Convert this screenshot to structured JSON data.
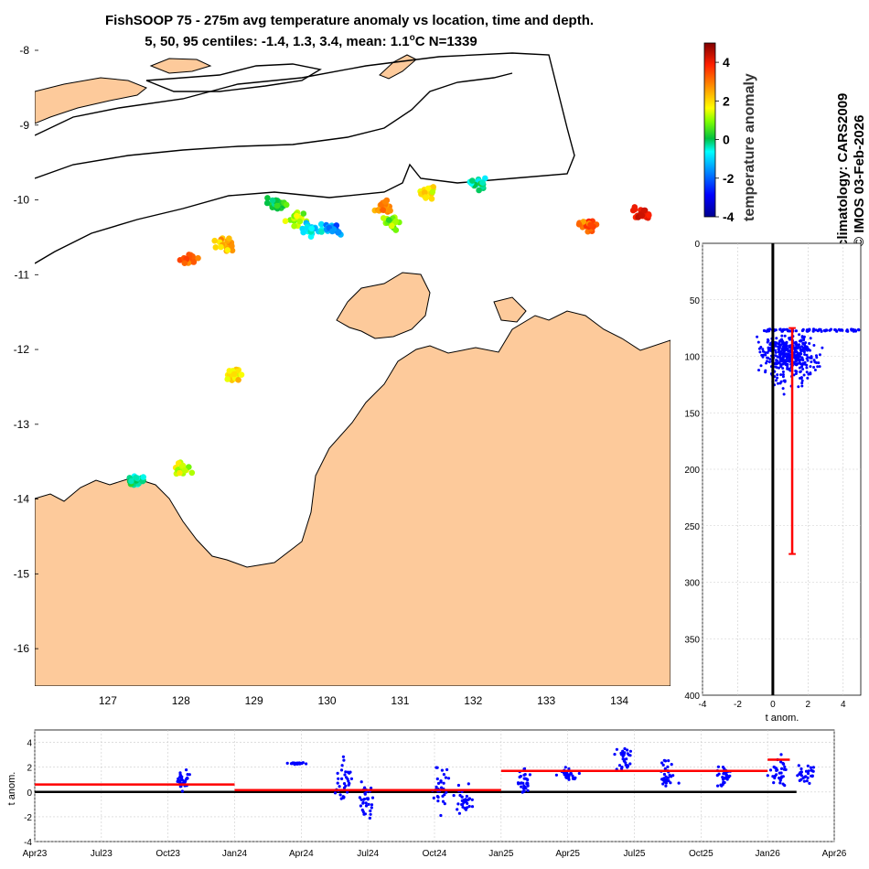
{
  "title": {
    "line1": "FishSOOP 75 - 275m avg temperature anomaly vs location, time and depth.",
    "line2_prefix": "5, 50, 95 centiles: -1.4, 1.3, 3.4, mean: 1.1",
    "line2_unit": "C N=1339"
  },
  "side_text": {
    "climatology": "climatology: CARS2009",
    "copyright": "© IMOS 03-Feb-2026"
  },
  "colors": {
    "land": "#fdca9b",
    "coast": "#000000",
    "obs": "#0000ff",
    "mean": "#ff0000",
    "zero": "#000000"
  },
  "chart_data": [
    {
      "type": "scatter",
      "name": "map",
      "xlabel": "longitude",
      "ylabel": "latitude",
      "xlim": [
        126.0,
        134.7
      ],
      "ylim": [
        -16.5,
        -8.0
      ],
      "xticks": [
        "127",
        "128",
        "129",
        "130",
        "131",
        "132",
        "133",
        "134"
      ],
      "xtick_values": [
        127,
        128,
        129,
        130,
        131,
        132,
        133,
        134
      ],
      "yticks": [
        "-8",
        "-9",
        "-10",
        "-11",
        "-12",
        "-13",
        "-14",
        "-15",
        "-16"
      ],
      "ytick_values": [
        -8,
        -9,
        -10,
        -11,
        -12,
        -13,
        -14,
        -15,
        -16
      ],
      "clusters": [
        {
          "lon": 128.1,
          "lat": -10.8,
          "anom": 3.3
        },
        {
          "lon": 128.6,
          "lat": -10.6,
          "anom": 2.4
        },
        {
          "lon": 129.3,
          "lat": -10.05,
          "anom": 0.2
        },
        {
          "lon": 129.6,
          "lat": -10.25,
          "anom": 1.2
        },
        {
          "lon": 129.8,
          "lat": -10.4,
          "anom": -0.8
        },
        {
          "lon": 130.1,
          "lat": -10.4,
          "anom": -1.6
        },
        {
          "lon": 130.8,
          "lat": -10.1,
          "anom": 2.8
        },
        {
          "lon": 130.9,
          "lat": -10.3,
          "anom": 1.0
        },
        {
          "lon": 131.4,
          "lat": -9.9,
          "anom": 1.8
        },
        {
          "lon": 132.1,
          "lat": -9.8,
          "anom": -0.4
        },
        {
          "lon": 133.6,
          "lat": -10.35,
          "anom": 3.2
        },
        {
          "lon": 134.3,
          "lat": -10.2,
          "anom": 4.1
        },
        {
          "lon": 128.7,
          "lat": -12.35,
          "anom": 1.8
        },
        {
          "lon": 128.0,
          "lat": -13.6,
          "anom": 1.2
        },
        {
          "lon": 127.4,
          "lat": -13.75,
          "anom": -0.2
        }
      ],
      "colorbar": {
        "label": "temperature anomaly",
        "range": [
          -4,
          5
        ],
        "ticks": [
          "4",
          "2",
          "0",
          "-2",
          "-4"
        ],
        "tick_values": [
          4,
          2,
          0,
          -2,
          -4
        ]
      }
    },
    {
      "type": "scatter",
      "name": "depth-profile",
      "xlabel": "t anom.",
      "ylabel": "depth",
      "xlim": [
        -4,
        5
      ],
      "ylim": [
        0,
        400
      ],
      "xticks": [
        "-4",
        "-2",
        "0",
        "2",
        "4"
      ],
      "xtick_values": [
        -4,
        -2,
        0,
        2,
        4
      ],
      "yticks": [
        "0",
        "50",
        "100",
        "150",
        "200",
        "250",
        "300",
        "350",
        "400"
      ],
      "ytick_values": [
        0,
        50,
        100,
        150,
        200,
        250,
        300,
        350,
        400
      ],
      "obs_depth_range": [
        75,
        140
      ],
      "mean_profile": {
        "anom": 1.1,
        "depth_top": 75,
        "depth_bottom": 275,
        "cap_anom_range": [
          0.9,
          1.3
        ]
      },
      "zero_line": 0
    },
    {
      "type": "scatter",
      "name": "time-series",
      "xlabel": "",
      "ylabel": "t anom.",
      "ylim": [
        -4,
        5
      ],
      "xticks": [
        "Apr23",
        "Jul23",
        "Oct23",
        "Jan24",
        "Apr24",
        "Jul24",
        "Oct24",
        "Jan25",
        "Apr25",
        "Jul25",
        "Oct25",
        "Jan26",
        "Apr26"
      ],
      "yticks": [
        "4",
        "2",
        "0",
        "-2",
        "-4"
      ],
      "ytick_values": [
        4,
        2,
        0,
        -2,
        -4
      ],
      "mean_segments": [
        {
          "from": "Apr23",
          "to": "Jan24",
          "value": 0.6
        },
        {
          "from": "Jan24",
          "to": "Jan25",
          "value": 0.15
        },
        {
          "from": "Jan25",
          "to": "Jan26",
          "value": 1.7
        },
        {
          "from": "Jan26",
          "to": "Feb26",
          "value": 2.6
        }
      ],
      "observation_clusters": [
        {
          "month": 6.7,
          "anom": 0.8,
          "spread": 1.2
        },
        {
          "month": 11.8,
          "anom": 2.3,
          "spread": 0.1
        },
        {
          "month": 14.0,
          "anom": 1.0,
          "spread": 2.5
        },
        {
          "month": 15.0,
          "anom": -0.8,
          "spread": 1.8
        },
        {
          "month": 18.3,
          "anom": 0.5,
          "spread": 3.0
        },
        {
          "month": 19.3,
          "anom": -0.5,
          "spread": 1.5
        },
        {
          "month": 22.0,
          "anom": 0.8,
          "spread": 1.6
        },
        {
          "month": 24.0,
          "anom": 1.3,
          "spread": 0.8
        },
        {
          "month": 26.5,
          "anom": 2.6,
          "spread": 1.8
        },
        {
          "month": 28.5,
          "anom": 1.4,
          "spread": 1.5
        },
        {
          "month": 31.0,
          "anom": 1.2,
          "spread": 1.6
        },
        {
          "month": 33.5,
          "anom": 1.6,
          "spread": 1.8
        },
        {
          "month": 34.8,
          "anom": 1.4,
          "spread": 1.2
        }
      ]
    }
  ]
}
